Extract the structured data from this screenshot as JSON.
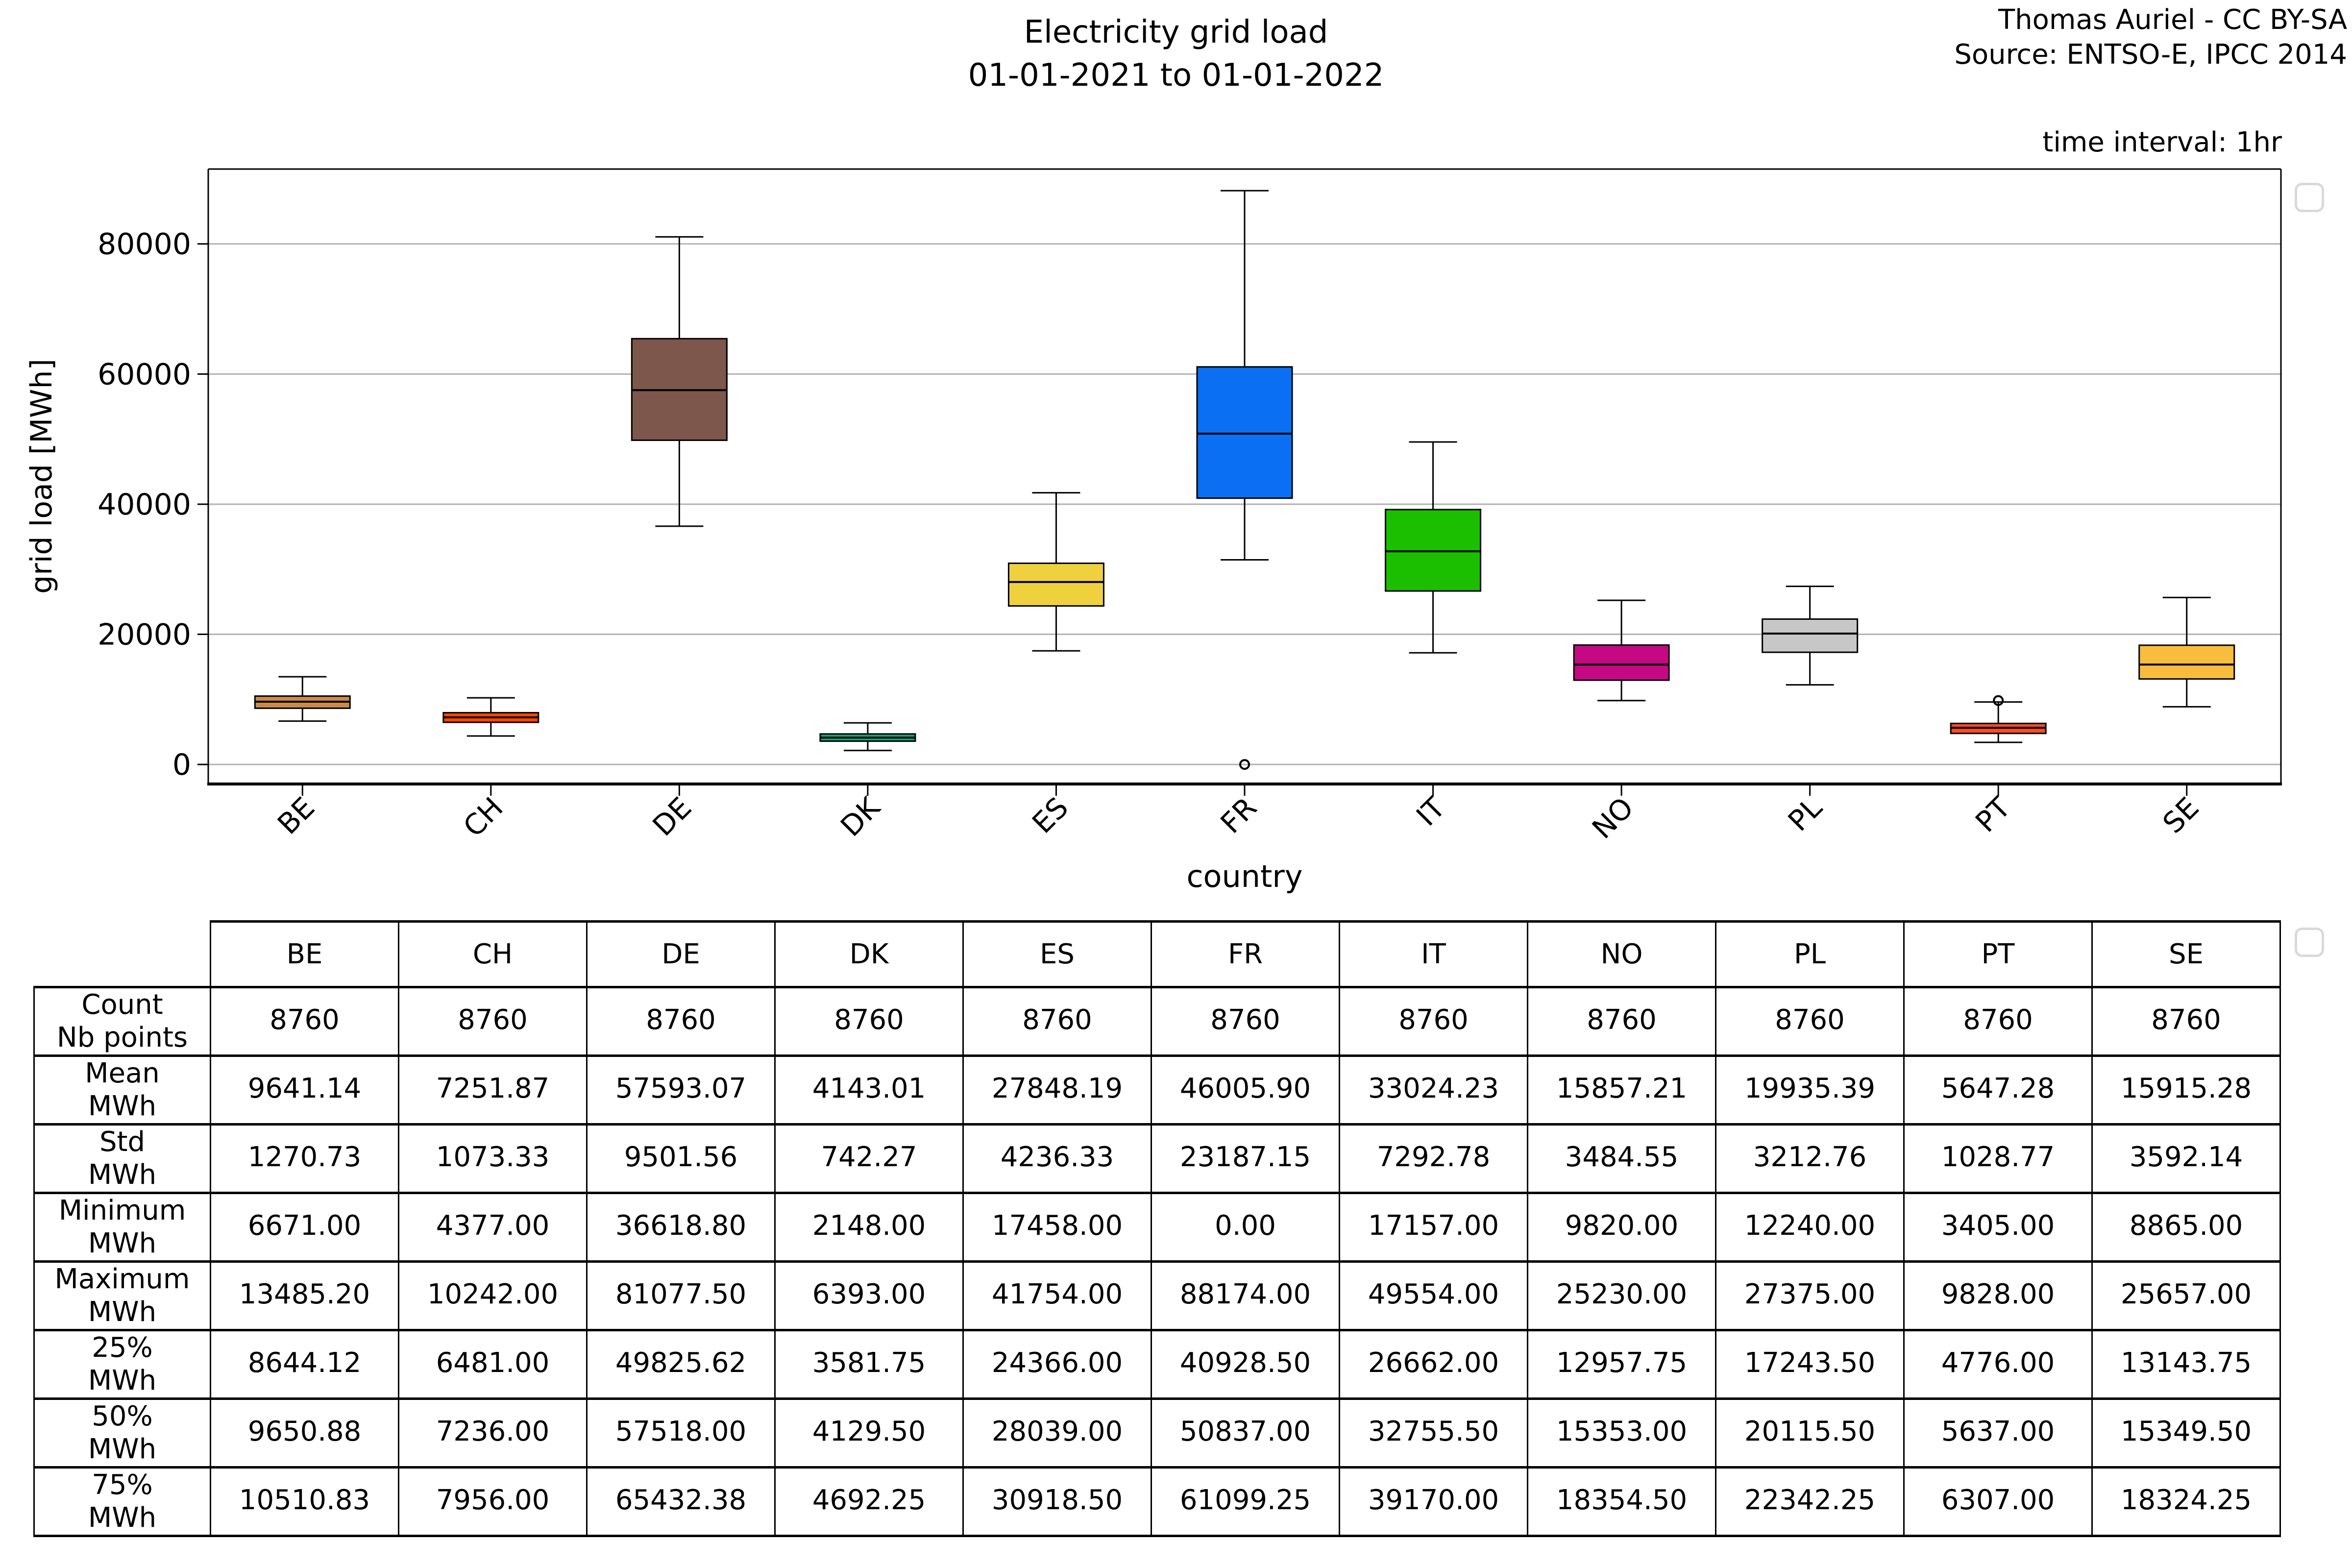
{
  "header": {
    "title": "Electricity grid load",
    "subtitle": "01-01-2021 to 01-01-2022",
    "attribution_line1": "Thomas Auriel - CC BY-SA",
    "attribution_line2": "Source: ENTSO-E, IPCC 2014",
    "time_interval": "time interval: 1hr"
  },
  "chart_data": {
    "type": "box",
    "title": "Electricity grid load 01-01-2021 to 01-01-2022",
    "xlabel": "country",
    "ylabel": "grid load [MWh]",
    "ylim": [
      -3000,
      91500
    ],
    "yticks": [
      0,
      20000,
      40000,
      60000,
      80000
    ],
    "grid": "horizontal-gridlines",
    "grid_color": "#b2b2b2",
    "categories": [
      "BE",
      "CH",
      "DE",
      "DK",
      "ES",
      "FR",
      "IT",
      "NO",
      "PL",
      "PT",
      "SE"
    ],
    "series": [
      {
        "label": "BE",
        "color": "#C98A4B",
        "whislo": 6671.0,
        "q1": 8644.12,
        "median": 9650.88,
        "q3": 10510.83,
        "whishi": 13485.2,
        "outliers": []
      },
      {
        "label": "CH",
        "color": "#FF4500",
        "whislo": 4377.0,
        "q1": 6481.0,
        "median": 7236.0,
        "q3": 7956.0,
        "whishi": 10242.0,
        "outliers": []
      },
      {
        "label": "DE",
        "color": "#7D564C",
        "whislo": 36618.8,
        "q1": 49825.62,
        "median": 57518.0,
        "q3": 65432.38,
        "whishi": 81077.5,
        "outliers": []
      },
      {
        "label": "DK",
        "color": "#0FA97C",
        "whislo": 2148.0,
        "q1": 3581.75,
        "median": 4129.5,
        "q3": 4692.25,
        "whishi": 6393.0,
        "outliers": []
      },
      {
        "label": "ES",
        "color": "#EFD13D",
        "whislo": 17458.0,
        "q1": 24366.0,
        "median": 28039.0,
        "q3": 30918.5,
        "whishi": 41754.0,
        "outliers": []
      },
      {
        "label": "FR",
        "color": "#0A6FF3",
        "whislo": 31450.0,
        "q1": 40928.5,
        "median": 50837.0,
        "q3": 61099.25,
        "whishi": 88174.0,
        "outliers": [
          0
        ]
      },
      {
        "label": "IT",
        "color": "#1CBE00",
        "whislo": 17157.0,
        "q1": 26662.0,
        "median": 32755.5,
        "q3": 39170.0,
        "whishi": 49554.0,
        "outliers": []
      },
      {
        "label": "NO",
        "color": "#C50982",
        "whislo": 9820.0,
        "q1": 12957.75,
        "median": 15353.0,
        "q3": 18354.5,
        "whishi": 25230.0,
        "outliers": []
      },
      {
        "label": "PL",
        "color": "#C7C7C7",
        "whislo": 12240.0,
        "q1": 17243.5,
        "median": 20115.5,
        "q3": 22342.25,
        "whishi": 27375.0,
        "outliers": []
      },
      {
        "label": "PT",
        "color": "#FB4D24",
        "whislo": 3405.0,
        "q1": 4776.0,
        "median": 5637.0,
        "q3": 6307.0,
        "whishi": 9600.0,
        "outliers": [
          9828
        ]
      },
      {
        "label": "SE",
        "color": "#F9BD3D",
        "whislo": 8865.0,
        "q1": 13143.75,
        "median": 15349.5,
        "q3": 18324.25,
        "whishi": 25657.0,
        "outliers": []
      }
    ]
  },
  "table": {
    "columns": [
      "BE",
      "CH",
      "DE",
      "DK",
      "ES",
      "FR",
      "IT",
      "NO",
      "PL",
      "PT",
      "SE"
    ],
    "rows": [
      {
        "label": "Count",
        "sublabel": "Nb points",
        "values": [
          "8760",
          "8760",
          "8760",
          "8760",
          "8760",
          "8760",
          "8760",
          "8760",
          "8760",
          "8760",
          "8760"
        ]
      },
      {
        "label": "Mean",
        "sublabel": "MWh",
        "values": [
          "9641.14",
          "7251.87",
          "57593.07",
          "4143.01",
          "27848.19",
          "46005.90",
          "33024.23",
          "15857.21",
          "19935.39",
          "5647.28",
          "15915.28"
        ]
      },
      {
        "label": "Std",
        "sublabel": "MWh",
        "values": [
          "1270.73",
          "1073.33",
          "9501.56",
          "742.27",
          "4236.33",
          "23187.15",
          "7292.78",
          "3484.55",
          "3212.76",
          "1028.77",
          "3592.14"
        ]
      },
      {
        "label": "Minimum",
        "sublabel": "MWh",
        "values": [
          "6671.00",
          "4377.00",
          "36618.80",
          "2148.00",
          "17458.00",
          "0.00",
          "17157.00",
          "9820.00",
          "12240.00",
          "3405.00",
          "8865.00"
        ]
      },
      {
        "label": "Maximum",
        "sublabel": "MWh",
        "values": [
          "13485.20",
          "10242.00",
          "81077.50",
          "6393.00",
          "41754.00",
          "88174.00",
          "49554.00",
          "25230.00",
          "27375.00",
          "9828.00",
          "25657.00"
        ]
      },
      {
        "label": "25%",
        "sublabel": "MWh",
        "values": [
          "8644.12",
          "6481.00",
          "49825.62",
          "3581.75",
          "24366.00",
          "40928.50",
          "26662.00",
          "12957.75",
          "17243.50",
          "4776.00",
          "13143.75"
        ]
      },
      {
        "label": "50%",
        "sublabel": "MWh",
        "values": [
          "9650.88",
          "7236.00",
          "57518.00",
          "4129.50",
          "28039.00",
          "50837.00",
          "32755.50",
          "15353.00",
          "20115.50",
          "5637.00",
          "15349.50"
        ]
      },
      {
        "label": "75%",
        "sublabel": "MWh",
        "values": [
          "10510.83",
          "7956.00",
          "65432.38",
          "4692.25",
          "30918.50",
          "61099.25",
          "39170.00",
          "18354.50",
          "22342.25",
          "6307.00",
          "18324.25"
        ]
      }
    ]
  }
}
